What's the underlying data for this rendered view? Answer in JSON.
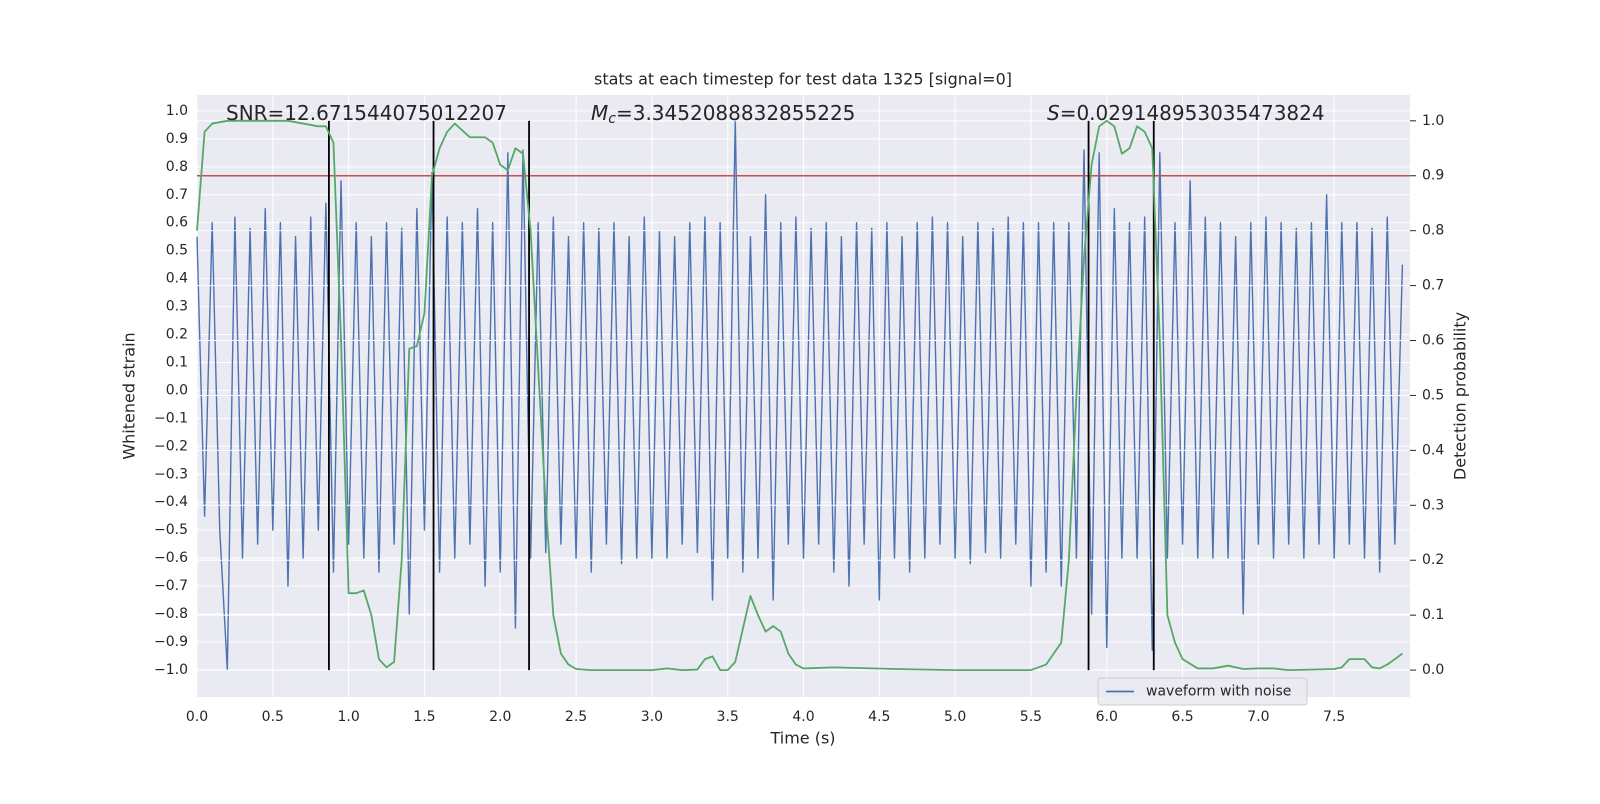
{
  "chart_data": {
    "type": "line",
    "title": "stats at each timestep for test data 1325 [signal=0]",
    "xlabel": "Time (s)",
    "ylabel": "Whitened strain",
    "y2label": "Detection probability",
    "annotations": [
      {
        "text": "SNR=12.671544075012207"
      },
      {
        "symbol": "M",
        "subscript": "c",
        "text": "=3.3452088832855225"
      },
      {
        "symbol": "S",
        "text": "=0.029148953035473824"
      }
    ],
    "xlim": [
      0,
      8
    ],
    "ylim": [
      -1.097,
      1.057
    ],
    "y2lim": [
      -0.049,
      1.047
    ],
    "xticks": [
      {
        "value": 0,
        "label": "0.0"
      },
      {
        "value": 0.5,
        "label": "0.5"
      },
      {
        "value": 1,
        "label": "1.0"
      },
      {
        "value": 1.5,
        "label": "1.5"
      },
      {
        "value": 2,
        "label": "2.0"
      },
      {
        "value": 2.5,
        "label": "2.5"
      },
      {
        "value": 3,
        "label": "3.0"
      },
      {
        "value": 3.5,
        "label": "3.5"
      },
      {
        "value": 4,
        "label": "4.0"
      },
      {
        "value": 4.5,
        "label": "4.5"
      },
      {
        "value": 5,
        "label": "5.0"
      },
      {
        "value": 5.5,
        "label": "5.5"
      },
      {
        "value": 6,
        "label": "6.0"
      },
      {
        "value": 6.5,
        "label": "6.5"
      },
      {
        "value": 7,
        "label": "7.0"
      },
      {
        "value": 7.5,
        "label": "7.5"
      }
    ],
    "yticks": [
      {
        "value": -1,
        "label": "−1.0"
      },
      {
        "value": -0.9,
        "label": "−0.9"
      },
      {
        "value": -0.8,
        "label": "−0.8"
      },
      {
        "value": -0.7,
        "label": "−0.7"
      },
      {
        "value": -0.6,
        "label": "−0.6"
      },
      {
        "value": -0.5,
        "label": "−0.5"
      },
      {
        "value": -0.4,
        "label": "−0.4"
      },
      {
        "value": -0.3,
        "label": "−0.3"
      },
      {
        "value": -0.2,
        "label": "−0.2"
      },
      {
        "value": -0.1,
        "label": "−0.1"
      },
      {
        "value": 0,
        "label": "0.0"
      },
      {
        "value": 0.1,
        "label": "0.1"
      },
      {
        "value": 0.2,
        "label": "0.2"
      },
      {
        "value": 0.3,
        "label": "0.3"
      },
      {
        "value": 0.4,
        "label": "0.4"
      },
      {
        "value": 0.5,
        "label": "0.5"
      },
      {
        "value": 0.6,
        "label": "0.6"
      },
      {
        "value": 0.7,
        "label": "0.7"
      },
      {
        "value": 0.8,
        "label": "0.8"
      },
      {
        "value": 0.9,
        "label": "0.9"
      },
      {
        "value": 1,
        "label": "1.0"
      }
    ],
    "y2ticks": [
      {
        "value": 0,
        "label": "0.0"
      },
      {
        "value": 0.1,
        "label": "0.1"
      },
      {
        "value": 0.2,
        "label": "0.2"
      },
      {
        "value": 0.3,
        "label": "0.3"
      },
      {
        "value": 0.4,
        "label": "0.4"
      },
      {
        "value": 0.5,
        "label": "0.5"
      },
      {
        "value": 0.6,
        "label": "0.6"
      },
      {
        "value": 0.7,
        "label": "0.7"
      },
      {
        "value": 0.8,
        "label": "0.8"
      },
      {
        "value": 0.9,
        "label": "0.9"
      },
      {
        "value": 1,
        "label": "1.0"
      }
    ],
    "grid": true,
    "series": [
      {
        "name": "waveform with noise",
        "color": "#4c72b0",
        "x": [
          0,
          0.05,
          0.1,
          0.15,
          0.2,
          0.25,
          0.3,
          0.35,
          0.4,
          0.45,
          0.5,
          0.55,
          0.6,
          0.65,
          0.7,
          0.75,
          0.8,
          0.85,
          0.9,
          0.95,
          1,
          1.05,
          1.1,
          1.15,
          1.2,
          1.25,
          1.3,
          1.35,
          1.4,
          1.45,
          1.5,
          1.55,
          1.6,
          1.65,
          1.7,
          1.75,
          1.8,
          1.85,
          1.9,
          1.95,
          2,
          2.05,
          2.1,
          2.15,
          2.2,
          2.25,
          2.3,
          2.35,
          2.4,
          2.45,
          2.5,
          2.55,
          2.6,
          2.65,
          2.7,
          2.75,
          2.8,
          2.85,
          2.9,
          2.95,
          3,
          3.05,
          3.1,
          3.15,
          3.2,
          3.25,
          3.3,
          3.35,
          3.4,
          3.45,
          3.5,
          3.55,
          3.6,
          3.65,
          3.7,
          3.75,
          3.8,
          3.85,
          3.9,
          3.95,
          4,
          4.05,
          4.1,
          4.15,
          4.2,
          4.25,
          4.3,
          4.35,
          4.4,
          4.45,
          4.5,
          4.55,
          4.6,
          4.65,
          4.7,
          4.75,
          4.8,
          4.85,
          4.9,
          4.95,
          5,
          5.05,
          5.1,
          5.15,
          5.2,
          5.25,
          5.3,
          5.35,
          5.4,
          5.45,
          5.5,
          5.55,
          5.6,
          5.65,
          5.7,
          5.75,
          5.8,
          5.85,
          5.9,
          5.95,
          6,
          6.05,
          6.1,
          6.15,
          6.2,
          6.25,
          6.3,
          6.35,
          6.4,
          6.45,
          6.5,
          6.55,
          6.6,
          6.65,
          6.7,
          6.75,
          6.8,
          6.85,
          6.9,
          6.95,
          7,
          7.05,
          7.1,
          7.15,
          7.2,
          7.25,
          7.3,
          7.35,
          7.4,
          7.45,
          7.5,
          7.55,
          7.6,
          7.65,
          7.7,
          7.75,
          7.8,
          7.85,
          7.9,
          7.95
        ],
        "values": [
          0.55,
          -0.45,
          0.6,
          -0.5,
          -1.0,
          0.62,
          -0.6,
          0.58,
          -0.55,
          0.65,
          -0.5,
          0.6,
          -0.7,
          0.55,
          -0.6,
          0.62,
          -0.5,
          0.67,
          -0.65,
          0.75,
          -0.55,
          0.6,
          -0.6,
          0.55,
          -0.65,
          0.6,
          -0.55,
          0.58,
          -0.8,
          0.65,
          -0.5,
          0.78,
          -0.65,
          0.62,
          -0.6,
          0.6,
          -0.55,
          0.65,
          -0.7,
          0.6,
          -0.65,
          0.85,
          -0.85,
          0.86,
          -0.6,
          0.6,
          -0.58,
          0.62,
          -0.55,
          0.55,
          -0.6,
          0.6,
          -0.65,
          0.58,
          -0.55,
          0.6,
          -0.62,
          0.55,
          -0.6,
          0.62,
          -0.6,
          0.57,
          -0.6,
          0.55,
          -0.55,
          0.6,
          -0.58,
          0.62,
          -0.75,
          0.6,
          -0.6,
          0.97,
          -0.65,
          0.55,
          -0.6,
          0.7,
          -0.75,
          0.6,
          -0.55,
          0.62,
          -0.6,
          0.58,
          -0.55,
          0.6,
          -0.65,
          0.55,
          -0.7,
          0.6,
          -0.55,
          0.58,
          -0.75,
          0.6,
          -0.6,
          0.55,
          -0.65,
          0.6,
          -0.6,
          0.62,
          -0.55,
          0.6,
          -0.6,
          0.55,
          -0.62,
          0.6,
          -0.58,
          0.58,
          -0.6,
          0.62,
          -0.55,
          0.6,
          -0.7,
          0.6,
          -0.65,
          0.6,
          -0.7,
          0.6,
          -0.6,
          0.86,
          -0.8,
          0.85,
          -0.92,
          0.65,
          -0.6,
          0.6,
          -0.6,
          0.62,
          -0.93,
          0.85,
          -0.6,
          0.6,
          -0.55,
          0.75,
          -0.6,
          0.62,
          -0.6,
          0.6,
          -0.6,
          0.55,
          -0.8,
          0.6,
          -0.55,
          0.62,
          -0.6,
          0.6,
          -0.55,
          0.58,
          -0.6,
          0.6,
          -0.55,
          0.7,
          -0.6,
          0.6,
          -0.55,
          0.6,
          -0.6,
          0.58,
          -0.65,
          0.62,
          -0.55,
          0.45
        ]
      },
      {
        "axis": "y2",
        "color": "#55a868",
        "x": [
          0,
          0.05,
          0.1,
          0.2,
          0.4,
          0.6,
          0.7,
          0.8,
          0.85,
          0.9,
          0.95,
          1,
          1.05,
          1.1,
          1.15,
          1.2,
          1.25,
          1.3,
          1.35,
          1.4,
          1.45,
          1.5,
          1.55,
          1.6,
          1.65,
          1.7,
          1.8,
          1.9,
          1.95,
          2,
          2.05,
          2.1,
          2.15,
          2.2,
          2.3,
          2.35,
          2.4,
          2.45,
          2.5,
          2.6,
          3,
          3.1,
          3.2,
          3.3,
          3.35,
          3.4,
          3.45,
          3.5,
          3.55,
          3.65,
          3.7,
          3.75,
          3.8,
          3.85,
          3.9,
          3.95,
          4,
          4.2,
          4.6,
          5,
          5.5,
          5.6,
          5.7,
          5.75,
          5.8,
          5.85,
          5.9,
          5.95,
          6,
          6.05,
          6.1,
          6.15,
          6.2,
          6.25,
          6.3,
          6.35,
          6.4,
          6.45,
          6.5,
          6.6,
          6.7,
          6.8,
          6.9,
          7,
          7.1,
          7.2,
          7.5,
          7.55,
          7.6,
          7.7,
          7.75,
          7.8,
          7.85,
          7.95
        ],
        "values": [
          0.8,
          0.98,
          0.995,
          1.0,
          1.0,
          1.0,
          0.995,
          0.99,
          0.99,
          0.96,
          0.6,
          0.14,
          0.14,
          0.145,
          0.1,
          0.02,
          0.005,
          0.015,
          0.2,
          0.585,
          0.59,
          0.65,
          0.9,
          0.95,
          0.98,
          0.995,
          0.97,
          0.97,
          0.96,
          0.92,
          0.91,
          0.95,
          0.94,
          0.8,
          0.3,
          0.1,
          0.03,
          0.01,
          0.002,
          0.0,
          0.0,
          0.003,
          0.0,
          0.001,
          0.02,
          0.025,
          0.0,
          0.0,
          0.015,
          0.135,
          0.1,
          0.07,
          0.08,
          0.07,
          0.03,
          0.01,
          0.003,
          0.005,
          0.002,
          0.0,
          0.0,
          0.01,
          0.05,
          0.2,
          0.5,
          0.75,
          0.92,
          0.99,
          1.0,
          0.99,
          0.94,
          0.95,
          0.99,
          0.98,
          0.95,
          0.6,
          0.1,
          0.05,
          0.02,
          0.003,
          0.003,
          0.008,
          0.002,
          0.003,
          0.003,
          0.0,
          0.002,
          0.005,
          0.02,
          0.02,
          0.005,
          0.003,
          0.01,
          0.03
        ]
      }
    ],
    "hlines": [
      {
        "y": 0.9,
        "axis": "y2",
        "color": "#c44e52"
      }
    ],
    "vlines": {
      "x": [
        0.87,
        1.56,
        2.19,
        5.88,
        6.31
      ],
      "ymin": 0,
      "ymax": 1,
      "axis": "y2",
      "color": "#000000"
    }
  }
}
